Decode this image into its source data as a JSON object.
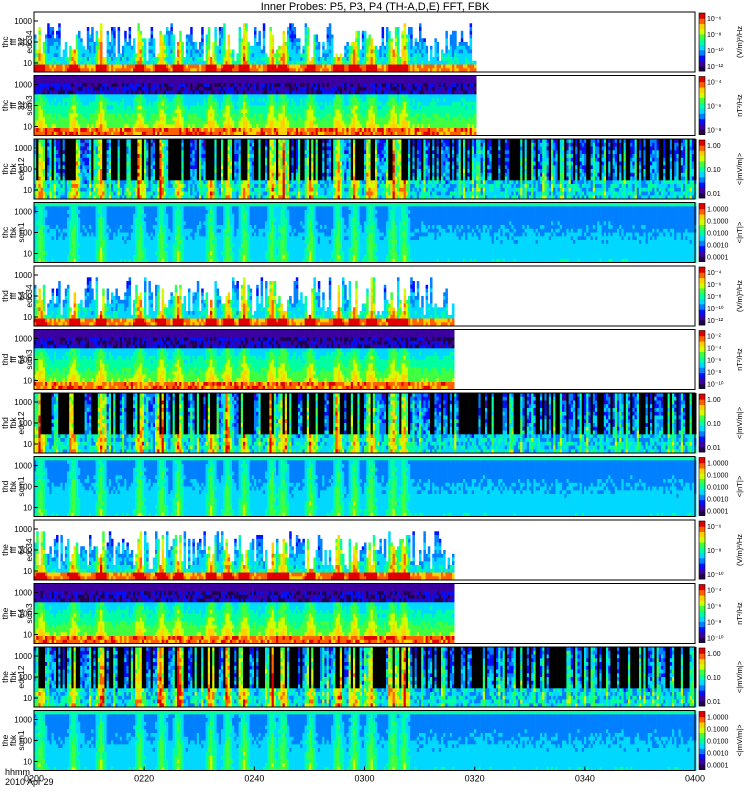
{
  "title": "Inner Probes: P5, P3, P4 (TH-A,D,E) FFT, FBK",
  "footer": {
    "line1": "hhmm",
    "line2": "2010 Apr 29"
  },
  "x_ticks": [
    "0200",
    "0220",
    "0240",
    "0300",
    "0320",
    "0340",
    "0400"
  ],
  "colors": {
    "colormap": [
      "#20004a",
      "#3a00a0",
      "#0010ff",
      "#0080ff",
      "#00d8ff",
      "#00ffa0",
      "#40ff40",
      "#d0ff00",
      "#ffd000",
      "#ff6000",
      "#e00000"
    ]
  },
  "chart_data": [
    {
      "type": "heatmap",
      "ylabel": [
        "thc",
        "fff",
        "32",
        "edc34"
      ],
      "yticks": [
        "1000",
        "100",
        "10"
      ],
      "cbar_ticks": [
        "10⁻⁶",
        "10⁻⁸",
        "10⁻¹⁰",
        "10⁻¹²"
      ],
      "cbar_label": "(V/m)²/Hz",
      "data_end": "0320",
      "pattern": "fft_e"
    },
    {
      "type": "heatmap",
      "ylabel": [
        "thc",
        "fff",
        "32",
        "scm3"
      ],
      "yticks": [
        "1000",
        "100",
        "10"
      ],
      "cbar_ticks": [
        "10⁻⁴",
        "10⁻⁶",
        "10⁻⁸"
      ],
      "cbar_label": "nT²/Hz",
      "data_end": "0320",
      "pattern": "fft_b"
    },
    {
      "type": "heatmap",
      "ylabel": [
        "thc",
        "fbk",
        "edc12"
      ],
      "yticks": [
        "1000",
        "100",
        "10"
      ],
      "cbar_ticks": [
        "1.00",
        "0.10",
        "0.01"
      ],
      "cbar_label": "<|mV/m|>",
      "data_end": "0400",
      "pattern": "fbk_e"
    },
    {
      "type": "heatmap",
      "ylabel": [
        "thc",
        "fbk",
        "scm1"
      ],
      "yticks": [
        "1000",
        "100",
        "10"
      ],
      "cbar_ticks": [
        "1.0000",
        "0.1000",
        "0.0100",
        "0.0010",
        "0.0001"
      ],
      "cbar_label": "<|nT|>",
      "data_end": "0400",
      "pattern": "fbk_b"
    },
    {
      "type": "heatmap",
      "ylabel": [
        "thd",
        "fff",
        "64",
        "edc34"
      ],
      "yticks": [
        "1000",
        "100",
        "10"
      ],
      "cbar_ticks": [
        "10⁻⁴",
        "10⁻⁶",
        "10⁻⁸",
        "10⁻¹⁰",
        "10⁻¹²"
      ],
      "cbar_label": "(V/m)²/Hz",
      "data_end": "0316",
      "pattern": "fft_e"
    },
    {
      "type": "heatmap",
      "ylabel": [
        "thd",
        "fff",
        "64",
        "scm3"
      ],
      "yticks": [
        "1000",
        "100",
        "10"
      ],
      "cbar_ticks": [
        "10⁻²",
        "10⁻⁴",
        "10⁻⁶",
        "10⁻⁸",
        "10⁻¹⁰"
      ],
      "cbar_label": "nT²/Hz",
      "data_end": "0316",
      "pattern": "fft_b"
    },
    {
      "type": "heatmap",
      "ylabel": [
        "thd",
        "fbk",
        "edc12"
      ],
      "yticks": [
        "1000",
        "100",
        "10"
      ],
      "cbar_ticks": [
        "1.00",
        "0.10",
        "0.01"
      ],
      "cbar_label": "<|mV/m|>",
      "data_end": "0400",
      "pattern": "fbk_e"
    },
    {
      "type": "heatmap",
      "ylabel": [
        "thd",
        "fbk",
        "scm1"
      ],
      "yticks": [
        "1000",
        "100",
        "10"
      ],
      "cbar_ticks": [
        "1.0000",
        "0.1000",
        "0.0100",
        "0.0010",
        "0.0001"
      ],
      "cbar_label": "<|nT|>",
      "data_end": "0400",
      "pattern": "fbk_b"
    },
    {
      "type": "heatmap",
      "ylabel": [
        "the",
        "fff",
        "64",
        "edc34"
      ],
      "yticks": [
        "1000",
        "100",
        "10"
      ],
      "cbar_ticks": [
        "10⁻⁶",
        "10⁻⁸",
        "10⁻¹⁰"
      ],
      "cbar_label": "(V/m)²/Hz",
      "data_end": "0316",
      "pattern": "fft_e"
    },
    {
      "type": "heatmap",
      "ylabel": [
        "the",
        "fff",
        "64",
        "scm3"
      ],
      "yticks": [
        "1000",
        "100",
        "10"
      ],
      "cbar_ticks": [
        "10⁻⁴",
        "10⁻⁶",
        "10⁻⁸",
        "10⁻¹⁰"
      ],
      "cbar_label": "nT²/Hz",
      "data_end": "0316",
      "pattern": "fft_b"
    },
    {
      "type": "heatmap",
      "ylabel": [
        "the",
        "fbk",
        "edc12"
      ],
      "yticks": [
        "1000",
        "100",
        "10"
      ],
      "cbar_ticks": [
        "1.00",
        "0.10",
        "0.01"
      ],
      "cbar_label": "<|mV/m|>",
      "data_end": "0400",
      "pattern": "fbk_e"
    },
    {
      "type": "heatmap",
      "ylabel": [
        "the",
        "fbk",
        "scm1"
      ],
      "yticks": [
        "1000",
        "100",
        "10"
      ],
      "cbar_ticks": [
        "1.0000",
        "0.1000",
        "0.0100",
        "0.0010",
        "0.0001"
      ],
      "cbar_label": "<|mV/m|>",
      "data_end": "0400",
      "pattern": "fbk_b"
    }
  ]
}
